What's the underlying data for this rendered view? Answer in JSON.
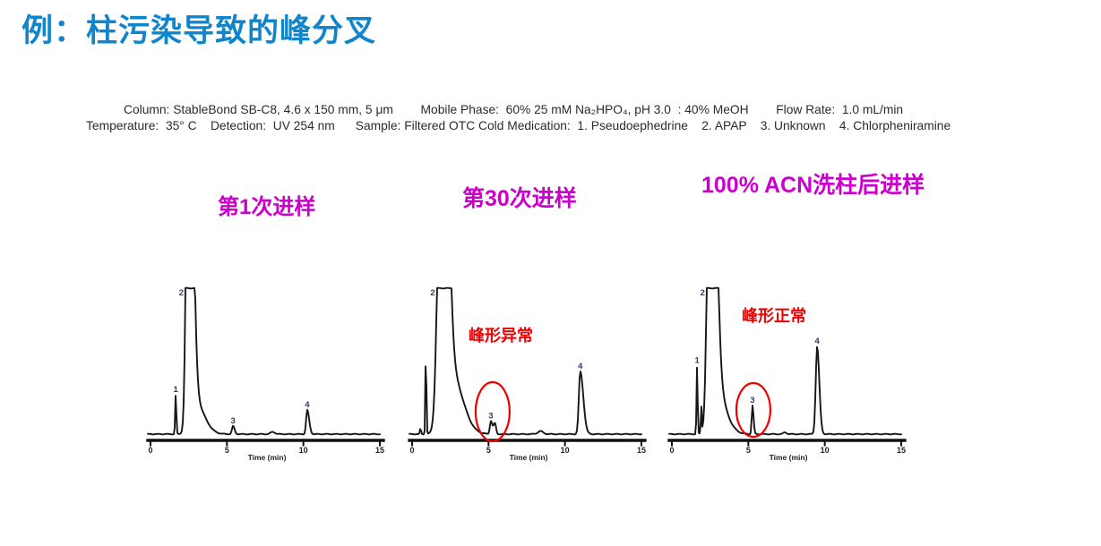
{
  "slide": {
    "title": "例：柱污染导致的峰分叉",
    "conditions": {
      "line1": "Column: StableBond SB-C8, 4.6 x 150 mm, 5 μm        Mobile Phase:  60% 25 mM Na₂HPO₄, pH 3.0  : 40% MeOH        Flow Rate:  1.0 mL/min",
      "line2": "Temperature:  35° C    Detection:  UV 254 nm      Sample: Filtered OTC Cold Medication:  1. Pseudoephedrine    2. APAP    3. Unknown    4. Chlorpheniramine"
    },
    "colors": {
      "title_blue": "#1185cb",
      "label_magenta": "#cc00cc",
      "annotation_red": "#ef0000",
      "peak_label_blue": "#333a6b",
      "trace_black": "#161616",
      "conditions_text": "#2b2b2b"
    }
  },
  "chart_data": [
    {
      "type": "line",
      "title": "第1次进样",
      "xlabel": "Time (min)",
      "ylabel": "",
      "xlim": [
        0,
        15
      ],
      "x_ticks": [
        0,
        5,
        10,
        15
      ],
      "grid": false,
      "peaks": [
        {
          "label": "1",
          "t": 1.65,
          "h": 0.27,
          "wl": 0.05,
          "wr": 0.055
        },
        {
          "label": "2",
          "t": 2.5,
          "h": 3.2,
          "wl": 0.2,
          "wr": 0.35,
          "clipped": true,
          "note": "off-scale, flat-topped main peak"
        },
        {
          "label": "",
          "t": 2.9,
          "h": 0.22,
          "wl": 0.45,
          "wr": 0.85,
          "note": "tailing of peak 2"
        },
        {
          "label": "3",
          "t": 5.4,
          "h": 0.055,
          "wl": 0.1,
          "wr": 0.14
        },
        {
          "label": "",
          "t": 8.0,
          "h": 0.015,
          "wl": 0.2,
          "wr": 0.2,
          "note": "minor baseline bump"
        },
        {
          "label": "4",
          "t": 10.25,
          "h": 0.165,
          "wl": 0.1,
          "wr": 0.18
        }
      ],
      "annotation": null
    },
    {
      "type": "line",
      "title": "第30次进样",
      "xlabel": "Time (min)",
      "ylabel": "",
      "xlim": [
        0,
        15
      ],
      "x_ticks": [
        0,
        5,
        10,
        15
      ],
      "grid": false,
      "peaks": [
        {
          "label": "",
          "t": 0.55,
          "h": 0.04,
          "wl": 0.05,
          "wr": 0.05
        },
        {
          "label": "",
          "t": 0.9,
          "h": 0.58,
          "wl": 0.045,
          "wr": 0.05,
          "note": "sharp early spike"
        },
        {
          "label": "2",
          "t": 2.0,
          "h": 3.2,
          "wl": 0.35,
          "wr": 0.45,
          "clipped": true,
          "note": "off-scale, flat-topped main peak"
        },
        {
          "label": "",
          "t": 2.6,
          "h": 0.4,
          "wl": 0.5,
          "wr": 1.0,
          "note": "tailing of peak 2"
        },
        {
          "label": "3",
          "t": 5.15,
          "h": 0.09,
          "wl": 0.09,
          "wr": 0.13,
          "note": "abnormal split peak (first apex)"
        },
        {
          "label": "",
          "t": 5.42,
          "h": 0.075,
          "wl": 0.13,
          "wr": 0.1,
          "note": "abnormal split peak (second apex)"
        },
        {
          "label": "",
          "t": 8.4,
          "h": 0.02,
          "wl": 0.25,
          "wr": 0.25,
          "note": "minor baseline bump"
        },
        {
          "label": "4",
          "t": 11.0,
          "h": 0.43,
          "wl": 0.13,
          "wr": 0.28
        }
      ],
      "annotation": {
        "text": "峰形异常",
        "circled_peak": "3"
      }
    },
    {
      "type": "line",
      "title": "100% ACN洗柱后进样",
      "xlabel": "Time (min)",
      "ylabel": "",
      "xlim": [
        0,
        15
      ],
      "x_ticks": [
        0,
        5,
        10,
        15
      ],
      "grid": false,
      "peaks": [
        {
          "label": "1",
          "t": 1.65,
          "h": 0.47,
          "wl": 0.05,
          "wr": 0.05
        },
        {
          "label": "",
          "t": 1.92,
          "h": 0.19,
          "wl": 0.04,
          "wr": 0.045,
          "note": "small companion spike"
        },
        {
          "label": "2",
          "t": 2.55,
          "h": 3.2,
          "wl": 0.25,
          "wr": 0.41,
          "clipped": true,
          "note": "off-scale, flat-topped main peak"
        },
        {
          "label": "",
          "t": 2.7,
          "h": 0.38,
          "wl": 0.4,
          "wr": 0.95,
          "note": "tailing of peak 2"
        },
        {
          "label": "3",
          "t": 5.27,
          "h": 0.195,
          "wl": 0.07,
          "wr": 0.1,
          "note": "restored normal sharp peak"
        },
        {
          "label": "",
          "t": 7.4,
          "h": 0.012,
          "wl": 0.15,
          "wr": 0.15,
          "note": "minor baseline bump"
        },
        {
          "label": "4",
          "t": 9.5,
          "h": 0.6,
          "wl": 0.13,
          "wr": 0.2
        }
      ],
      "annotation": {
        "text": "峰形正常",
        "circled_peak": "3"
      }
    }
  ]
}
